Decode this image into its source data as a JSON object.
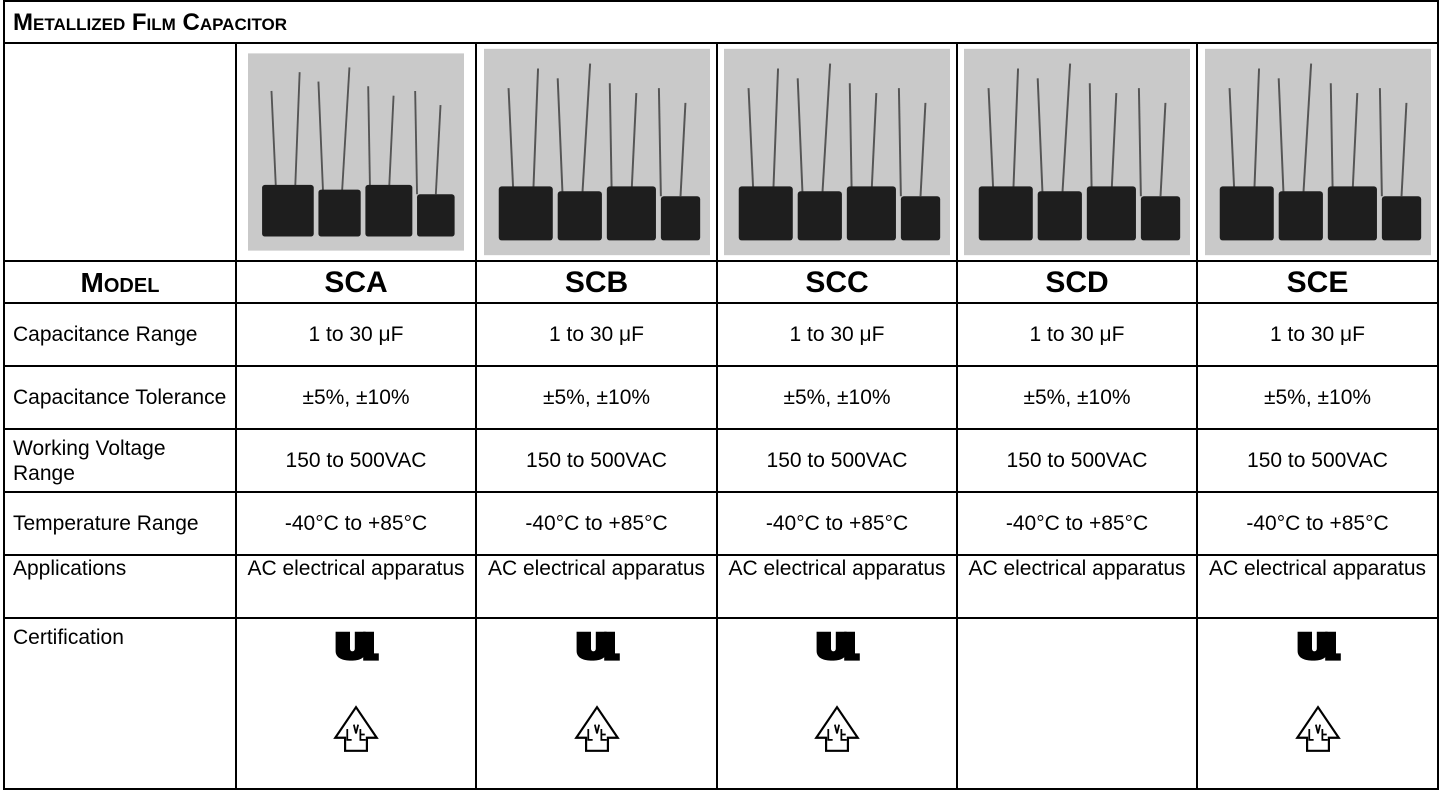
{
  "header": {
    "title": "Metallized Film Capacitor"
  },
  "table": {
    "header": [
      "Model",
      "SCA",
      "SCB",
      "SCC",
      "SCD",
      "SCE"
    ],
    "rows": [
      [
        "Capacitance Range",
        "1 to 30 μF",
        "1 to 30 μF",
        "1 to 30 μF",
        "1 to 30 μF",
        "1 to 30 μF"
      ],
      [
        "Capacitance Tolerance",
        "±5%, ±10%",
        "±5%, ±10%",
        "±5%, ±10%",
        "±5%, ±10%",
        "±5%, ±10%"
      ],
      [
        "Working Voltage Range",
        "150 to 500VAC",
        "150 to 500VAC",
        "150 to 500VAC",
        "150 to 500VAC",
        "150 to 500VAC"
      ],
      [
        "Temperature Range",
        "-40°C to +85°C",
        "-40°C to +85°C",
        "-40°C to +85°C",
        "-40°C to +85°C",
        "-40°C to +85°C"
      ],
      [
        "Applications",
        "AC electrical apparatus",
        "AC electrical apparatus",
        "AC electrical apparatus",
        "AC electrical apparatus",
        "AC electrical apparatus"
      ],
      [
        "Certification"
      ]
    ]
  }
}
